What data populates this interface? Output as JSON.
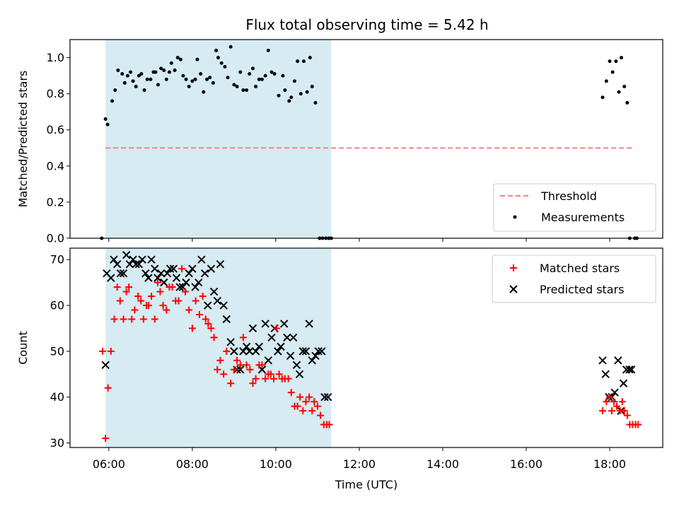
{
  "chart_data": {
    "title": "Flux total observing time = 5.42 h",
    "xlabel": "Time (UTC)",
    "xticks": [
      "06:00",
      "08:00",
      "10:00",
      "12:00",
      "14:00",
      "16:00",
      "18:00"
    ],
    "xlim": [
      5.07,
      19.27
    ],
    "shaded_span": [
      5.92,
      11.33
    ],
    "colors": {
      "shade": "#add8e6",
      "threshold": "#ff7f7f",
      "matched": "#ff0000",
      "predicted": "#000000",
      "measurement": "#000000"
    },
    "panels": [
      {
        "type": "scatter",
        "ylabel": "Matched/Predicted stars",
        "ylim": [
          0,
          1.1
        ],
        "yticks": [
          "0.0",
          "0.2",
          "0.4",
          "0.6",
          "0.8",
          "1.0"
        ],
        "legend_position": "lower right",
        "legend": [
          "Threshold",
          "Measurements"
        ],
        "threshold": {
          "name": "Threshold",
          "y": 0.5,
          "x": [
            5.92,
            18.6
          ]
        },
        "series": [
          {
            "name": "Measurements",
            "marker": "dot",
            "x": [
              5.83,
              5.92,
              5.97,
              6.08,
              6.15,
              6.22,
              6.32,
              6.38,
              6.45,
              6.52,
              6.58,
              6.65,
              6.72,
              6.78,
              6.85,
              6.92,
              7.0,
              7.07,
              7.12,
              7.18,
              7.25,
              7.32,
              7.38,
              7.45,
              7.5,
              7.58,
              7.65,
              7.72,
              7.78,
              7.85,
              7.92,
              8.0,
              8.07,
              8.12,
              8.2,
              8.27,
              8.35,
              8.42,
              8.5,
              8.57,
              8.62,
              8.7,
              8.78,
              8.85,
              8.92,
              9.0,
              9.07,
              9.15,
              9.22,
              9.3,
              9.37,
              9.45,
              9.52,
              9.6,
              9.67,
              9.75,
              9.82,
              9.9,
              9.97,
              10.07,
              10.17,
              10.22,
              10.32,
              10.37,
              10.45,
              10.52,
              10.6,
              10.67,
              10.75,
              10.82,
              10.87,
              10.95,
              11.05,
              11.12,
              11.2,
              11.27,
              11.33,
              17.83,
              17.92,
              18.0,
              18.07,
              18.15,
              18.22,
              18.28,
              18.35,
              18.42,
              18.48,
              18.6,
              18.65
            ],
            "y": [
              0,
              0.66,
              0.63,
              0.76,
              0.82,
              0.93,
              0.91,
              0.86,
              0.9,
              0.92,
              0.87,
              0.84,
              0.9,
              0.91,
              0.82,
              0.88,
              0.88,
              0.92,
              0.92,
              0.85,
              0.94,
              0.93,
              0.88,
              0.92,
              0.97,
              0.93,
              1.0,
              0.99,
              0.9,
              0.88,
              0.84,
              0.87,
              0.88,
              0.99,
              0.91,
              0.81,
              0.88,
              0.89,
              0.86,
              1.04,
              1.0,
              0.97,
              0.95,
              0.89,
              1.06,
              0.85,
              0.84,
              0.92,
              0.82,
              0.82,
              0.91,
              0.94,
              0.84,
              0.88,
              0.88,
              0.9,
              1.04,
              0.92,
              0.91,
              0.79,
              0.9,
              0.82,
              0.76,
              0.78,
              0.87,
              0.98,
              0.8,
              0.98,
              0.81,
              1.0,
              0.84,
              0.75,
              0,
              0,
              0,
              0,
              0,
              0.78,
              0.87,
              0.98,
              0.92,
              0.98,
              0.81,
              1.0,
              0.84,
              0.75,
              0,
              0,
              0
            ]
          }
        ]
      },
      {
        "type": "scatter",
        "ylabel": "Count",
        "ylim": [
          29,
          72.5
        ],
        "yticks": [
          "30",
          "40",
          "50",
          "60",
          "70"
        ],
        "legend_position": "upper right",
        "legend": [
          "Matched stars",
          "Predicted stars"
        ],
        "series": [
          {
            "name": "Matched stars",
            "marker": "plus",
            "x": [
              5.85,
              5.92,
              5.98,
              6.05,
              6.13,
              6.2,
              6.27,
              6.35,
              6.42,
              6.48,
              6.55,
              6.62,
              6.7,
              6.77,
              6.83,
              6.9,
              6.95,
              7.02,
              7.1,
              7.17,
              7.23,
              7.3,
              7.38,
              7.45,
              7.52,
              7.6,
              7.67,
              7.75,
              7.83,
              7.92,
              8.0,
              8.08,
              8.17,
              8.25,
              8.32,
              8.38,
              8.45,
              8.52,
              8.6,
              8.67,
              8.75,
              8.82,
              8.92,
              9.0,
              9.07,
              9.15,
              9.22,
              9.3,
              9.38,
              9.45,
              9.52,
              9.6,
              9.67,
              9.75,
              9.82,
              9.88,
              9.95,
              10.02,
              10.08,
              10.15,
              10.22,
              10.3,
              10.37,
              10.45,
              10.52,
              10.58,
              10.65,
              10.72,
              10.8,
              10.87,
              10.92,
              11.0,
              11.07,
              11.15,
              11.22,
              11.28,
              17.83,
              17.92,
              18.0,
              18.05,
              18.1,
              18.17,
              18.25,
              18.3,
              18.35,
              18.42,
              18.48,
              18.55,
              18.62,
              18.68
            ],
            "y": [
              50,
              31,
              42,
              50,
              57,
              64,
              61,
              57,
              63,
              64,
              57,
              59,
              62,
              61,
              57,
              60,
              60,
              62,
              57,
              65,
              63,
              60,
              59,
              64,
              64,
              61,
              61,
              68,
              63,
              59,
              55,
              61,
              58,
              62,
              57,
              56,
              55,
              53,
              46,
              48,
              45,
              50,
              43,
              46,
              48,
              47,
              53,
              47,
              46,
              43,
              44,
              47,
              47,
              44,
              45,
              45,
              44,
              55,
              45,
              44,
              44,
              44,
              41,
              38,
              38,
              40,
              37,
              39,
              40,
              37,
              39,
              38,
              36,
              34,
              34,
              34,
              37,
              39,
              40,
              37,
              39,
              38,
              37,
              39,
              37,
              36,
              34,
              34,
              34,
              34
            ],
            "color": "#ff0000"
          },
          {
            "name": "Predicted stars",
            "marker": "x",
            "x": [
              5.92,
              5.95,
              6.05,
              6.12,
              6.2,
              6.28,
              6.35,
              6.42,
              6.5,
              6.58,
              6.65,
              6.72,
              6.8,
              6.88,
              6.95,
              7.02,
              7.1,
              7.17,
              7.25,
              7.32,
              7.4,
              7.47,
              7.55,
              7.62,
              7.7,
              7.77,
              7.85,
              7.92,
              8.0,
              8.07,
              8.15,
              8.22,
              8.3,
              8.37,
              8.45,
              8.52,
              8.6,
              8.67,
              8.75,
              8.82,
              8.92,
              9.0,
              9.07,
              9.15,
              9.22,
              9.3,
              9.37,
              9.45,
              9.52,
              9.6,
              9.67,
              9.75,
              9.82,
              9.9,
              9.97,
              10.05,
              10.12,
              10.2,
              10.27,
              10.35,
              10.42,
              10.5,
              10.57,
              10.65,
              10.72,
              10.8,
              10.87,
              10.95,
              11.02,
              11.1,
              11.17,
              11.25,
              17.83,
              17.9,
              17.98,
              18.05,
              18.12,
              18.2,
              18.27,
              18.33,
              18.4,
              18.47,
              18.52
            ],
            "y": [
              47,
              67,
              66,
              70,
              69,
              67,
              67,
              71,
              69,
              70,
              69,
              69,
              70,
              67,
              66,
              70,
              68,
              66,
              67,
              65,
              67,
              68,
              68,
              66,
              64,
              64,
              65,
              67,
              68,
              64,
              65,
              70,
              67,
              60,
              68,
              63,
              61,
              69,
              60,
              57,
              52,
              50,
              46,
              46,
              50,
              51,
              50,
              55,
              50,
              51,
              46,
              56,
              48,
              53,
              55,
              50,
              51,
              56,
              53,
              49,
              53,
              47,
              45,
              50,
              50,
              56,
              48,
              49,
              50,
              50,
              40,
              40,
              48,
              45,
              40,
              40,
              41,
              48,
              37,
              43,
              46,
              46,
              46
            ],
            "color": "#000000"
          }
        ]
      }
    ]
  }
}
